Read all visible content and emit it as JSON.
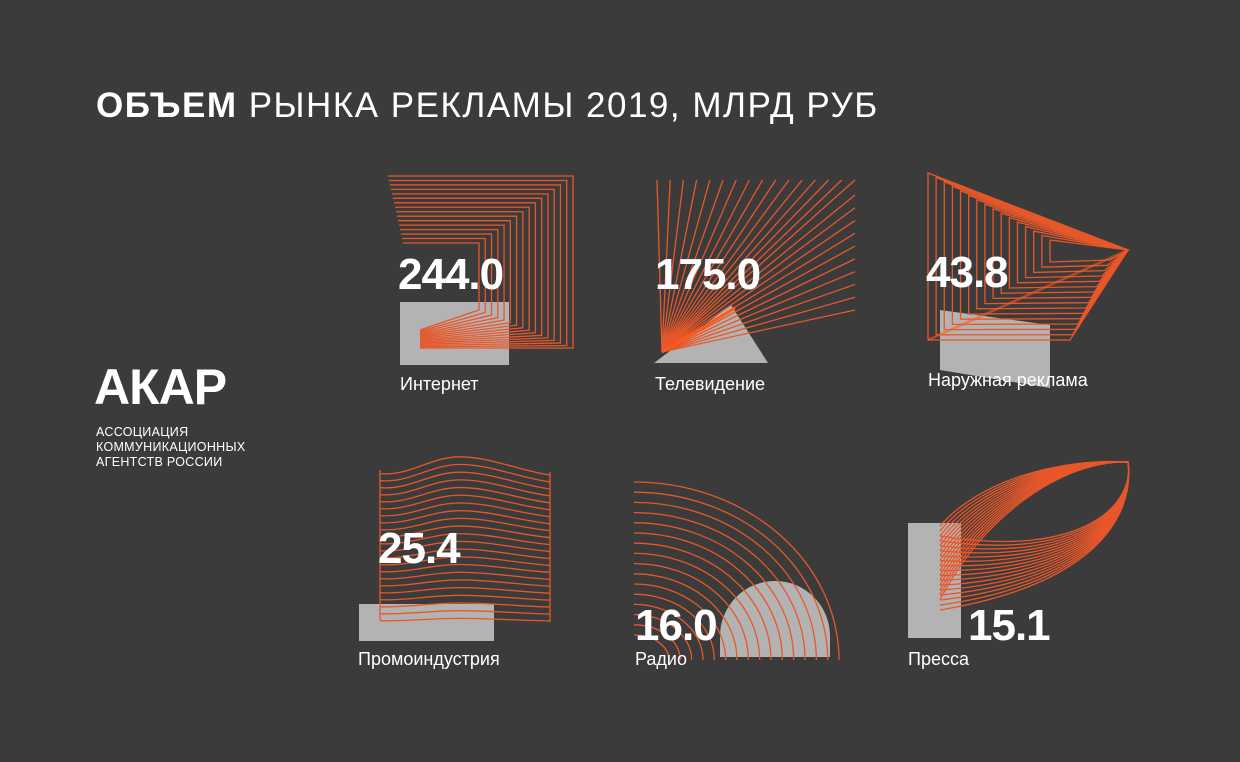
{
  "title": {
    "bold": "ОБЪЕМ",
    "rest": " РЫНКА РЕКЛАМЫ 2019, МЛРД РУБ"
  },
  "logo": {
    "text": "АКАР",
    "org_lines": [
      "АССОЦИАЦИЯ",
      "КОММУНИКАЦИОННЫХ",
      "АГЕНТСТВ РОССИИ"
    ]
  },
  "colors": {
    "background": "#3b3b3b",
    "lines": "#e8572a",
    "accent": "#ff5a1a",
    "shape": "#b3b3b3",
    "text": "#ffffff"
  },
  "chart_data": {
    "type": "bar",
    "categories": [
      "Интернет",
      "Телевидение",
      "Наружная реклама",
      "Промоиндустрия",
      "Радио",
      "Пресса"
    ],
    "values": [
      244.0,
      175.0,
      43.8,
      25.4,
      16.0,
      15.1
    ],
    "labels": [
      "244.0",
      "175.0",
      "43.8",
      "25.4",
      "16.0",
      "15.1"
    ],
    "unit": "МЛРД РУБ"
  }
}
